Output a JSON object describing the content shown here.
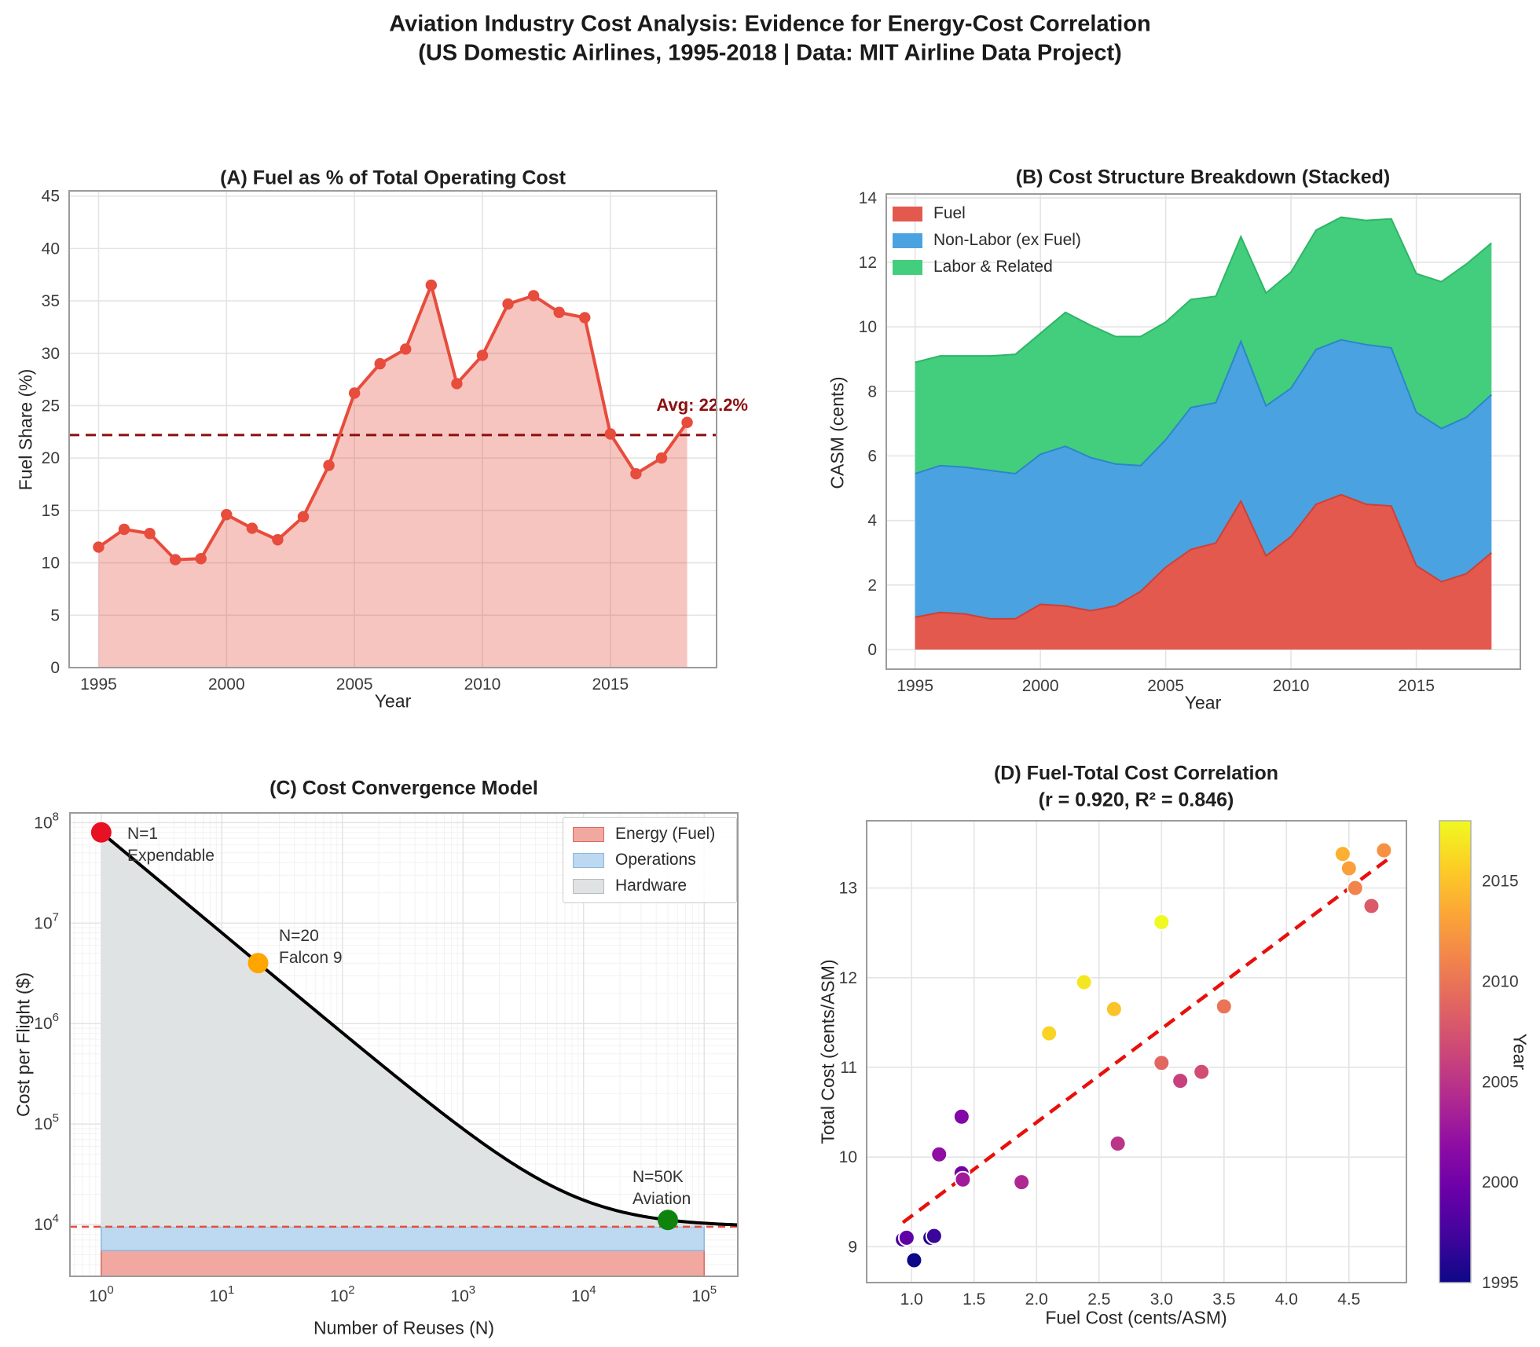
{
  "figure": {
    "title_line1": "Aviation Industry Cost Analysis: Evidence for Energy-Cost Correlation",
    "title_line2": "(US Domestic Airlines, 1995-2018 | Data: MIT Airline Data Project)"
  },
  "chart_data": [
    {
      "id": "A",
      "type": "line",
      "title": "(A) Fuel as % of Total Operating Cost",
      "xlabel": "Year",
      "ylabel": "Fuel Share (%)",
      "years": [
        1995,
        1996,
        1997,
        1998,
        1999,
        2000,
        2001,
        2002,
        2003,
        2004,
        2005,
        2006,
        2007,
        2008,
        2009,
        2010,
        2011,
        2012,
        2013,
        2014,
        2015,
        2016,
        2017,
        2018
      ],
      "values": [
        11.5,
        13.2,
        12.8,
        10.3,
        10.4,
        14.6,
        13.3,
        12.2,
        14.4,
        19.3,
        26.2,
        29.0,
        30.4,
        36.5,
        27.1,
        29.8,
        34.7,
        35.5,
        33.9,
        33.4,
        22.3,
        18.5,
        20.0,
        23.4
      ],
      "avg": {
        "value": 22.2,
        "label": "Avg: 22.2%",
        "color": "#8b0f0f"
      },
      "line_color": "#e74c3c",
      "fill_color": "rgba(231,76,60,0.32)",
      "xticks": [
        1995,
        2000,
        2005,
        2010,
        2015
      ],
      "yticks": [
        0,
        5,
        10,
        15,
        20,
        25,
        30,
        35,
        40,
        45
      ],
      "xlim": [
        1993.85,
        2019.15
      ],
      "ylim": [
        0,
        45.5
      ],
      "grid": true
    },
    {
      "id": "B",
      "type": "area",
      "title": "(B) Cost Structure Breakdown (Stacked)",
      "xlabel": "Year",
      "ylabel": "CASM (cents)",
      "years": [
        1995,
        1996,
        1997,
        1998,
        1999,
        2000,
        2001,
        2002,
        2003,
        2004,
        2005,
        2006,
        2007,
        2008,
        2009,
        2010,
        2011,
        2012,
        2013,
        2014,
        2015,
        2016,
        2017,
        2018
      ],
      "series": [
        {
          "name": "Fuel",
          "color": "#e4594e",
          "edge": "#cf4035",
          "values": [
            1.0,
            1.15,
            1.1,
            0.95,
            0.95,
            1.4,
            1.35,
            1.2,
            1.35,
            1.8,
            2.55,
            3.1,
            3.3,
            4.6,
            2.9,
            3.5,
            4.5,
            4.8,
            4.5,
            4.45,
            2.6,
            2.1,
            2.35,
            3.0
          ]
        },
        {
          "name": "Non-Labor (ex Fuel)",
          "color": "#4aa2e0",
          "edge": "#2b87c8",
          "values": [
            4.45,
            4.55,
            4.55,
            4.6,
            4.5,
            4.65,
            4.95,
            4.75,
            4.4,
            3.9,
            3.95,
            4.4,
            4.35,
            4.95,
            4.65,
            4.6,
            4.8,
            4.8,
            4.95,
            4.9,
            4.75,
            4.75,
            4.85,
            4.9
          ]
        },
        {
          "name": "Labor & Related",
          "color": "#43ce7d",
          "edge": "#2eb567",
          "values": [
            3.45,
            3.4,
            3.45,
            3.55,
            3.7,
            3.75,
            4.15,
            4.1,
            3.95,
            4.0,
            3.65,
            3.35,
            3.3,
            3.25,
            3.5,
            3.6,
            3.7,
            3.8,
            3.85,
            4.0,
            4.3,
            4.55,
            4.75,
            4.7
          ]
        }
      ],
      "xticks": [
        1995,
        2000,
        2005,
        2010,
        2015
      ],
      "yticks": [
        0,
        2,
        4,
        6,
        8,
        10,
        12,
        14
      ],
      "xlim": [
        1993.85,
        2019.15
      ],
      "ylim": [
        -0.61,
        14.12
      ],
      "grid": true
    },
    {
      "id": "C",
      "type": "line",
      "log_x": true,
      "log_y": true,
      "title": "(C) Cost Convergence Model",
      "xlabel": "Number of Reuses (N)",
      "ylabel": "Cost per Flight ($)",
      "model": {
        "hardware_cost_n1": 80000000,
        "energy_floor": 5500,
        "operations_floor": 4000,
        "cost_floor_total": 9500
      },
      "curve_color": "#000000",
      "floor_line": {
        "value": 9500,
        "color": "#e74c3c"
      },
      "bands": [
        {
          "label": "Energy (Fuel)",
          "fill": "#f0a8a1",
          "edge": "#d96a60",
          "from": 3050,
          "to": 5500
        },
        {
          "label": "Operations",
          "fill": "#bcd9f1",
          "edge": "#8ab7da",
          "from": 5500,
          "to": 9500
        },
        {
          "label": "Hardware",
          "fill": "#e0e3e3",
          "edge": "#b4b9ba",
          "from": 9500,
          "to": "curve"
        }
      ],
      "points": [
        {
          "n": 1,
          "cost": 80000000,
          "color": "#e81123",
          "label_lines": [
            "N=1",
            "Expendable"
          ]
        },
        {
          "n": 20,
          "cost": 4000000,
          "color": "#ffa500",
          "label_lines": [
            "N=20",
            "Falcon 9"
          ]
        },
        {
          "n": 50000,
          "cost": 11100,
          "color": "#0e840e",
          "label_lines": [
            "N=50K",
            "Aviation"
          ]
        }
      ],
      "xtick_exponents": [
        0,
        1,
        2,
        3,
        4,
        5
      ],
      "ytick_exponents": [
        4,
        5,
        6,
        7,
        8
      ],
      "xlim": [
        0.55,
        190000
      ],
      "ylim": [
        3050,
        125000000
      ],
      "band_x_range": [
        1,
        100000
      ],
      "grid": true
    },
    {
      "id": "D",
      "type": "scatter",
      "title_line1": "(D) Fuel-Total Cost Correlation",
      "title_line2": "(r = 0.920, R² = 0.846)",
      "xlabel": "Fuel Cost (cents/ASM)",
      "ylabel": "Total Cost (cents/ASM)",
      "stats": {
        "r": 0.92,
        "r_squared": 0.846
      },
      "points": [
        {
          "year": 1995,
          "x": 1.02,
          "y": 8.85
        },
        {
          "year": 1996,
          "x": 1.15,
          "y": 9.1
        },
        {
          "year": 1997,
          "x": 1.18,
          "y": 9.12
        },
        {
          "year": 1998,
          "x": 0.93,
          "y": 9.08
        },
        {
          "year": 1999,
          "x": 0.96,
          "y": 9.1
        },
        {
          "year": 2000,
          "x": 1.4,
          "y": 9.82
        },
        {
          "year": 2001,
          "x": 1.4,
          "y": 10.45
        },
        {
          "year": 2002,
          "x": 1.22,
          "y": 10.03
        },
        {
          "year": 2003,
          "x": 1.41,
          "y": 9.75
        },
        {
          "year": 2004,
          "x": 1.88,
          "y": 9.72
        },
        {
          "year": 2005,
          "x": 2.65,
          "y": 10.15
        },
        {
          "year": 2006,
          "x": 3.15,
          "y": 10.85
        },
        {
          "year": 2007,
          "x": 3.32,
          "y": 10.95
        },
        {
          "year": 2008,
          "x": 4.68,
          "y": 12.8
        },
        {
          "year": 2009,
          "x": 3.0,
          "y": 11.05
        },
        {
          "year": 2010,
          "x": 3.5,
          "y": 11.68
        },
        {
          "year": 2011,
          "x": 4.55,
          "y": 13.0
        },
        {
          "year": 2012,
          "x": 4.78,
          "y": 13.42
        },
        {
          "year": 2013,
          "x": 4.5,
          "y": 13.22
        },
        {
          "year": 2014,
          "x": 4.45,
          "y": 13.38
        },
        {
          "year": 2015,
          "x": 2.62,
          "y": 11.65
        },
        {
          "year": 2016,
          "x": 2.1,
          "y": 11.38
        },
        {
          "year": 2017,
          "x": 2.38,
          "y": 11.95
        },
        {
          "year": 2018,
          "x": 3.0,
          "y": 12.62
        }
      ],
      "regression": {
        "x0": 0.93,
        "y0": 9.27,
        "x1": 4.82,
        "y1": 13.33,
        "color": "#e8100c"
      },
      "colorbar": {
        "label": "Year",
        "min": 1995,
        "max": 2018,
        "ticks": [
          1995,
          2000,
          2005,
          2010,
          2015
        ],
        "colormap": "plasma"
      },
      "xticks": [
        1.0,
        1.5,
        2.0,
        2.5,
        3.0,
        3.5,
        4.0,
        4.5
      ],
      "yticks": [
        9,
        10,
        11,
        12,
        13
      ],
      "xlim": [
        0.64,
        4.96
      ],
      "ylim": [
        8.6,
        13.75
      ],
      "grid": true
    }
  ]
}
